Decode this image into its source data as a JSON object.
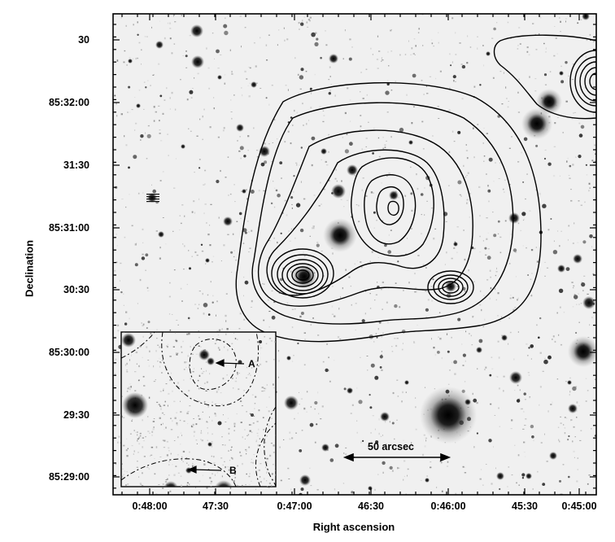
{
  "figure": {
    "x_axis_label": "Right ascension",
    "y_axis_label": "Declination",
    "x_ticks": [
      "0:48:00",
      "47:30",
      "0:47:00",
      "46:30",
      "0:46:00",
      "45:30",
      "0:45:00"
    ],
    "y_ticks": [
      "30",
      "85:32:00",
      "31:30",
      "85:31:00",
      "30:30",
      "85:30:00",
      "29:30",
      "85:29:00"
    ],
    "scale_bar_label": "50 arcsec",
    "inset_labels": [
      "A",
      "B"
    ],
    "colors": {
      "background": "#ffffff",
      "ink": "#000000",
      "sky": "#f2f2f2"
    }
  }
}
